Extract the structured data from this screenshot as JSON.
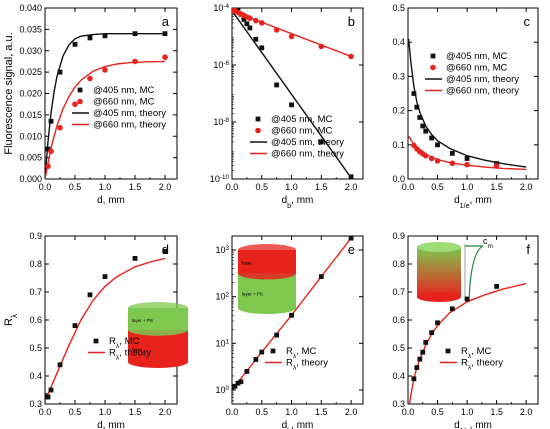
{
  "colors": {
    "black": "#111111",
    "red": "#e8231e",
    "green": "#7ec850"
  },
  "chart_data": [
    {
      "id": "a",
      "type": "scatter",
      "panel_label": "a",
      "xlabel": "d, mm",
      "ylabel": "Fluorescence signal, a.u.",
      "xlim": [
        0,
        2.2
      ],
      "ylim": [
        0,
        0.04
      ],
      "yscale": "linear",
      "xticks": [
        0,
        0.5,
        1,
        1.5,
        2
      ],
      "xtick_labels": [
        "0.0",
        "0.5",
        "1.0",
        "1.5",
        "2.0"
      ],
      "yticks": [
        0,
        0.005,
        0.01,
        0.015,
        0.02,
        0.025,
        0.03,
        0.035,
        0.04
      ],
      "ytick_labels": [
        "0.000",
        "0.005",
        "0.010",
        "0.015",
        "0.020",
        "0.025",
        "0.030",
        "0.035",
        "0.040"
      ],
      "legend_position": "bottom-right",
      "series": [
        {
          "name": "@405 nm, MC",
          "kind": "points",
          "marker": "square",
          "color": "#111111",
          "x": [
            0.05,
            0.1,
            0.25,
            0.5,
            0.75,
            1.0,
            1.5,
            2.0
          ],
          "y": [
            0.007,
            0.0135,
            0.025,
            0.0315,
            0.033,
            0.0335,
            0.034,
            0.034
          ]
        },
        {
          "name": "@660 nm, MC",
          "kind": "points",
          "marker": "circle",
          "color": "#e8231e",
          "x": [
            0.05,
            0.1,
            0.25,
            0.5,
            0.75,
            1.0,
            1.5,
            2.0
          ],
          "y": [
            0.003,
            0.0065,
            0.012,
            0.0175,
            0.0235,
            0.0255,
            0.0275,
            0.0285
          ]
        },
        {
          "name": "@405 nm, theory",
          "kind": "line",
          "color": "#111111",
          "x": [
            0,
            0.05,
            0.1,
            0.15,
            0.2,
            0.3,
            0.4,
            0.5,
            0.6,
            0.8,
            1.0,
            1.3,
            1.6,
            2.0
          ],
          "y": [
            0,
            0.0088,
            0.0154,
            0.0203,
            0.024,
            0.0288,
            0.0314,
            0.0328,
            0.0334,
            0.0338,
            0.034,
            0.034,
            0.034,
            0.034
          ]
        },
        {
          "name": "@660 nm, theory",
          "kind": "line",
          "color": "#e8231e",
          "x": [
            0,
            0.1,
            0.2,
            0.3,
            0.4,
            0.5,
            0.6,
            0.8,
            1.0,
            1.2,
            1.4,
            1.7,
            2.0
          ],
          "y": [
            0,
            0.0072,
            0.0125,
            0.0164,
            0.0193,
            0.0215,
            0.0231,
            0.0252,
            0.0263,
            0.0269,
            0.0272,
            0.0274,
            0.0275
          ]
        }
      ]
    },
    {
      "id": "b",
      "type": "scatter",
      "panel_label": "b",
      "xlabel": "d_b, mm",
      "ylabel": "",
      "xlim": [
        0,
        2.2
      ],
      "ylim": [
        1e-10,
        0.0001
      ],
      "yscale": "log",
      "xticks": [
        0,
        0.5,
        1,
        1.5,
        2
      ],
      "xtick_labels": [
        "0.0",
        "0.5",
        "1.0",
        "1.5",
        "2.0"
      ],
      "yticks": [
        1e-10,
        1e-08,
        1e-06,
        0.0001
      ],
      "ytick_labels": [
        {
          "base": "10",
          "exp": "-10"
        },
        {
          "base": "10",
          "exp": "-8"
        },
        {
          "base": "10",
          "exp": "-6"
        },
        {
          "base": "10",
          "exp": "-4"
        }
      ],
      "legend_position": "bottom-right",
      "series": [
        {
          "name": "@405 nm, MC",
          "kind": "points",
          "marker": "square",
          "color": "#111111",
          "x": [
            0,
            0.05,
            0.1,
            0.15,
            0.2,
            0.25,
            0.3,
            0.4,
            0.5,
            0.75,
            1.0,
            1.5,
            2.0
          ],
          "y": [
            0.0001,
            9.5e-05,
            8e-05,
            6e-05,
            4e-05,
            2.8e-05,
            2e-05,
            8e-06,
            4e-06,
            2e-07,
            4e-08,
            2e-09,
            1.2e-10
          ]
        },
        {
          "name": "@660 nm, MC",
          "kind": "points",
          "marker": "circle",
          "color": "#e8231e",
          "x": [
            0,
            0.05,
            0.1,
            0.15,
            0.2,
            0.25,
            0.3,
            0.4,
            0.5,
            0.75,
            1.0,
            1.5,
            2.0
          ],
          "y": [
            8e-05,
            8e-05,
            7e-05,
            6.2e-05,
            5.5e-05,
            4.8e-05,
            4.4e-05,
            3.6e-05,
            3e-05,
            1.7e-05,
            1e-05,
            4.5e-06,
            2e-06
          ]
        },
        {
          "name": "@405 nm, theory",
          "kind": "line",
          "color": "#111111",
          "x": [
            0,
            2.0
          ],
          "y": [
            8e-05,
            1.1e-10
          ]
        },
        {
          "name": "@660 nm, theory",
          "kind": "line",
          "color": "#e8231e",
          "x": [
            0,
            2.0
          ],
          "y": [
            8e-05,
            2e-06
          ]
        }
      ]
    },
    {
      "id": "c",
      "type": "scatter",
      "panel_label": "c",
      "xlabel": "d_1/e, mm",
      "ylabel": "",
      "xlim": [
        0,
        2.2
      ],
      "ylim": [
        0,
        0.5
      ],
      "yscale": "linear",
      "xticks": [
        0,
        0.5,
        1,
        1.5,
        2
      ],
      "xtick_labels": [
        "0.0",
        "0.5",
        "1.0",
        "1.5",
        "2.0"
      ],
      "yticks": [
        0,
        0.1,
        0.2,
        0.3,
        0.4,
        0.5
      ],
      "ytick_labels": [
        "0.0",
        "0.1",
        "0.2",
        "0.3",
        "0.4",
        "0.5"
      ],
      "legend_position": "top-right",
      "series": [
        {
          "name": "@405 nm, MC",
          "kind": "points",
          "marker": "square",
          "color": "#111111",
          "x": [
            0.1,
            0.15,
            0.2,
            0.25,
            0.3,
            0.4,
            0.5,
            0.75,
            1.0,
            1.5
          ],
          "y": [
            0.25,
            0.21,
            0.18,
            0.155,
            0.14,
            0.12,
            0.1,
            0.075,
            0.06,
            0.045
          ]
        },
        {
          "name": "@660 nm, MC",
          "kind": "points",
          "marker": "circle",
          "color": "#e8231e",
          "x": [
            0.1,
            0.15,
            0.2,
            0.25,
            0.3,
            0.4,
            0.5,
            0.75,
            1.0,
            1.5
          ],
          "y": [
            0.098,
            0.088,
            0.08,
            0.074,
            0.068,
            0.06,
            0.053,
            0.046,
            0.042,
            0.038
          ]
        },
        {
          "name": "@405 nm, theory",
          "kind": "line",
          "color": "#111111",
          "x": [
            0.01,
            0.05,
            0.1,
            0.15,
            0.2,
            0.3,
            0.4,
            0.5,
            0.7,
            1.0,
            1.3,
            1.6,
            2.0
          ],
          "y": [
            0.41,
            0.34,
            0.27,
            0.225,
            0.195,
            0.155,
            0.13,
            0.112,
            0.09,
            0.068,
            0.055,
            0.045,
            0.035
          ]
        },
        {
          "name": "@660 nm, theory",
          "kind": "line",
          "color": "#e8231e",
          "x": [
            0.01,
            0.05,
            0.1,
            0.2,
            0.3,
            0.4,
            0.5,
            0.7,
            1.0,
            1.3,
            1.6,
            2.0
          ],
          "y": [
            0.125,
            0.115,
            0.1,
            0.085,
            0.072,
            0.064,
            0.057,
            0.048,
            0.04,
            0.035,
            0.031,
            0.028
          ]
        }
      ]
    },
    {
      "id": "d",
      "type": "scatter",
      "panel_label": "d",
      "xlabel": "d, mm",
      "ylabel": "R_λ",
      "xlim": [
        0,
        2.2
      ],
      "ylim": [
        0.3,
        0.9
      ],
      "yscale": "linear",
      "xticks": [
        0,
        0.5,
        1,
        1.5,
        2
      ],
      "xtick_labels": [
        "0.0",
        "0.5",
        "1.0",
        "1.5",
        "2.0"
      ],
      "yticks": [
        0.3,
        0.4,
        0.5,
        0.6,
        0.7,
        0.8,
        0.9
      ],
      "ytick_labels": [
        "0.3",
        "0.4",
        "0.5",
        "0.6",
        "0.7",
        "0.8",
        "0.9"
      ],
      "legend_position": "bottom-right",
      "inset": {
        "kind": "two-layer-cylinder",
        "top_label": "layer + PS",
        "bottom_label": "base"
      },
      "series": [
        {
          "name": "R_λ, MC",
          "kind": "points",
          "marker": "square",
          "color": "#111111",
          "x": [
            0,
            0.05,
            0.1,
            0.25,
            0.5,
            0.75,
            1.0,
            1.5,
            2.0
          ],
          "y": [
            0.33,
            0.325,
            0.35,
            0.44,
            0.58,
            0.69,
            0.755,
            0.82,
            0.845
          ]
        },
        {
          "name": "R_λ, theory",
          "kind": "line",
          "color": "#e8231e",
          "x": [
            0,
            0.1,
            0.2,
            0.3,
            0.4,
            0.5,
            0.6,
            0.8,
            1.0,
            1.2,
            1.5,
            1.8,
            2.0
          ],
          "y": [
            0.31,
            0.36,
            0.41,
            0.46,
            0.51,
            0.555,
            0.6,
            0.67,
            0.72,
            0.755,
            0.79,
            0.81,
            0.82
          ]
        }
      ]
    },
    {
      "id": "e",
      "type": "scatter",
      "panel_label": "e",
      "xlabel": "d_b, mm",
      "ylabel": "",
      "xlim": [
        0,
        2.2
      ],
      "ylim": [
        0.5,
        2000
      ],
      "yscale": "log",
      "xticks": [
        0,
        0.5,
        1,
        1.5,
        2
      ],
      "xtick_labels": [
        "0.0",
        "0.5",
        "1.0",
        "1.5",
        "2.0"
      ],
      "yticks": [
        1,
        10,
        100,
        1000
      ],
      "ytick_labels": [
        {
          "base": "10",
          "exp": "0"
        },
        {
          "base": "10",
          "exp": "1"
        },
        {
          "base": "10",
          "exp": "2"
        },
        {
          "base": "10",
          "exp": "3"
        }
      ],
      "legend_position": "bottom-right",
      "inset": {
        "kind": "two-layer-cylinder-inverted",
        "top_label": "base",
        "bottom_label": "layer + PS"
      },
      "series": [
        {
          "name": "R_λ, MC",
          "kind": "points",
          "marker": "square",
          "color": "#111111",
          "x": [
            0,
            0.05,
            0.1,
            0.15,
            0.25,
            0.4,
            0.5,
            0.75,
            1.0,
            1.5,
            2.0
          ],
          "y": [
            1.1,
            1.2,
            1.4,
            1.5,
            2.5,
            4.5,
            6.5,
            15,
            40,
            270,
            1800
          ]
        },
        {
          "name": "R_λ, theory",
          "kind": "line",
          "color": "#e8231e",
          "x": [
            0,
            0.5,
            1.0,
            1.5,
            2.0
          ],
          "y": [
            1.0,
            6.5,
            40,
            270,
            1800
          ]
        }
      ]
    },
    {
      "id": "f",
      "type": "scatter",
      "panel_label": "f",
      "xlabel": "d_1/e, mm",
      "ylabel": "",
      "xlim": [
        0,
        2.2
      ],
      "ylim": [
        0.3,
        0.9
      ],
      "yscale": "linear",
      "xticks": [
        0,
        0.5,
        1,
        1.5,
        2
      ],
      "xtick_labels": [
        "0.0",
        "0.5",
        "1.0",
        "1.5",
        "2.0"
      ],
      "yticks": [
        0.3,
        0.4,
        0.5,
        0.6,
        0.7,
        0.8,
        0.9
      ],
      "ytick_labels": [
        "0.3",
        "0.4",
        "0.5",
        "0.6",
        "0.7",
        "0.8",
        "0.9"
      ],
      "legend_position": "bottom-right",
      "inset": {
        "kind": "gradient-cylinder",
        "curve_label": "c_m"
      },
      "series": [
        {
          "name": "R_λ, MC",
          "kind": "points",
          "marker": "square",
          "color": "#111111",
          "x": [
            0.1,
            0.15,
            0.2,
            0.25,
            0.3,
            0.4,
            0.5,
            0.75,
            1.0,
            1.5
          ],
          "y": [
            0.39,
            0.43,
            0.46,
            0.485,
            0.52,
            0.555,
            0.59,
            0.64,
            0.675,
            0.72
          ]
        },
        {
          "name": "R_λ, theory",
          "kind": "line",
          "color": "#e8231e",
          "x": [
            0.02,
            0.05,
            0.1,
            0.15,
            0.2,
            0.3,
            0.4,
            0.5,
            0.7,
            1.0,
            1.3,
            1.6,
            2.0
          ],
          "y": [
            0.29,
            0.335,
            0.39,
            0.43,
            0.46,
            0.51,
            0.55,
            0.58,
            0.625,
            0.665,
            0.69,
            0.71,
            0.73
          ]
        }
      ]
    }
  ]
}
